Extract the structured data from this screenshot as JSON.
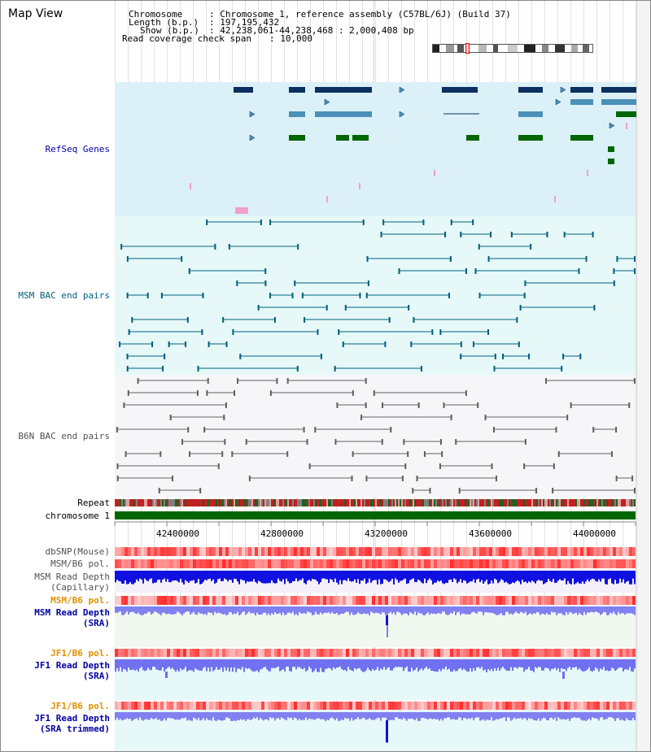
{
  "header": {
    "title": "Map View",
    "chromosome_label": "Chromosome",
    "chromosome_value": ": Chromosome 1, reference assembly (C57BL/6J) (Build 37)",
    "length_label": "Length (b.p.)",
    "length_value": ": 197,195,432",
    "show_label": "Show (b.p.)",
    "show_value": ": 42,238,061-44,238,468 : 2,000,408 bp",
    "coverage_label": "Read coverage check span",
    "coverage_value": ": 10,000"
  },
  "tracks": {
    "refseq": "RefSeq Genes",
    "msm_bac": "MSM BAC end pairs",
    "b6n_bac": "B6N BAC end pairs",
    "repeat": "Repeat",
    "chromosome": "chromosome 1",
    "dbsnp": "dbSNP(Mouse)",
    "msm_pol": "MSM/B6 pol.",
    "msm_depth_cap_1": "MSM Read Depth",
    "msm_depth_cap_2": "(Capillary)",
    "msm_pol_2": "MSM/B6 pol.",
    "msm_depth_sra_1": "MSM Read Depth",
    "msm_depth_sra_2": "(SRA)",
    "jf1_pol": "JF1/B6 pol.",
    "jf1_depth_1": "JF1 Read Depth",
    "jf1_depth_2": "(SRA)",
    "jf1_pol_2": "JF1/B6 pol.",
    "jf1_trim_1": "JF1 Read Depth",
    "jf1_trim_2": "(SRA trimmed)"
  },
  "axis": {
    "ticks": [
      "42400000",
      "42800000",
      "43200000",
      "43600000",
      "44000000"
    ]
  },
  "colors": {
    "refseq_bg": "#dcf0f8",
    "msm_bg": "#e6f8f8",
    "b6n_bg": "#f8f8f8",
    "gene_navy": "#0a3060",
    "gene_steel": "#4a90b8",
    "gene_green": "#006600",
    "bac_msm": "#006080",
    "bac_b6n": "#606060",
    "chromosome": "#006600",
    "depth_blue": "#1010e0",
    "depth_lavender": "#8080f0",
    "label_blue": "#0000a0",
    "label_teal": "#006080",
    "label_orange": "#e09000",
    "label_gray": "#505050"
  }
}
